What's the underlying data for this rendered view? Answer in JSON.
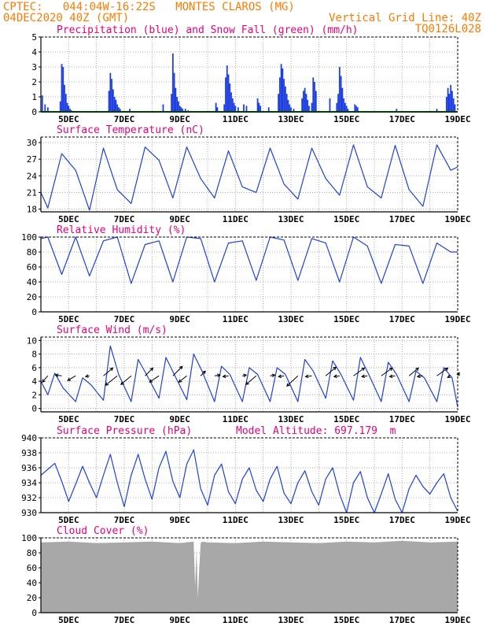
{
  "header": {
    "line1_left": "CPTEC:   044:04W-16:22S   MONTES CLAROS (MG)",
    "line2_left": "04DEC2020 40Z (GMT)",
    "line2_right": "Vertical Grid Line: 40Z",
    "line3_right": "TQ0126L028"
  },
  "colors": {
    "header": "#ff7a00",
    "panel_title": "#e8007a",
    "series": "#1f3fe0",
    "snow": "#00aa00",
    "cloud": "#a8a8a8",
    "grid": "#9a9a9a"
  },
  "chart_data": [
    {
      "type": "bar",
      "title": "Precipitation (blue) and Snow Fall (green) (mm/h)",
      "x_labels": [
        "5DEC",
        "7DEC",
        "9DEC",
        "11DEC",
        "13DEC",
        "15DEC",
        "17DEC",
        "19DEC"
      ],
      "xlim": [
        4.0,
        19.0
      ],
      "ylim": [
        0,
        5
      ],
      "yticks": [
        0,
        1,
        2,
        3,
        4,
        5
      ],
      "grid": true,
      "series": [
        {
          "name": "Precipitation",
          "x": [
            4.05,
            4.15,
            4.25,
            4.7,
            4.75,
            4.8,
            4.85,
            4.9,
            4.95,
            5.0,
            5.05,
            5.1,
            6.45,
            6.5,
            6.55,
            6.6,
            6.65,
            6.7,
            6.75,
            6.8,
            6.85,
            7.2,
            8.4,
            8.7,
            8.75,
            8.8,
            8.85,
            8.9,
            8.95,
            9.0,
            9.05,
            9.1,
            9.2,
            9.3,
            10.3,
            10.35,
            10.6,
            10.65,
            10.7,
            10.75,
            10.8,
            10.85,
            10.9,
            10.95,
            11.0,
            11.1,
            11.3,
            11.4,
            11.8,
            11.85,
            11.9,
            12.2,
            12.55,
            12.6,
            12.65,
            12.7,
            12.75,
            12.8,
            12.85,
            12.9,
            12.95,
            13.0,
            13.1,
            13.4,
            13.45,
            13.5,
            13.55,
            13.6,
            13.65,
            13.75,
            13.8,
            13.85,
            13.9,
            14.4,
            14.65,
            14.7,
            14.75,
            14.8,
            14.85,
            14.9,
            14.95,
            15.0,
            15.05,
            15.3,
            15.35,
            15.4,
            16.8,
            18.25,
            18.6,
            18.65,
            18.7,
            18.75,
            18.8,
            18.85,
            18.9
          ],
          "values": [
            1.1,
            0.5,
            0.3,
            0.7,
            3.2,
            3.0,
            1.8,
            1.2,
            0.6,
            0.4,
            0.2,
            0.1,
            1.4,
            2.6,
            2.2,
            1.5,
            1.0,
            0.8,
            0.5,
            0.3,
            0.2,
            0.2,
            0.5,
            1.2,
            3.9,
            2.6,
            1.6,
            1.0,
            0.7,
            0.4,
            0.3,
            0.2,
            0.2,
            0.1,
            0.6,
            0.3,
            0.5,
            2.3,
            3.1,
            2.5,
            1.9,
            1.3,
            0.9,
            0.6,
            0.4,
            0.3,
            0.5,
            0.4,
            0.9,
            0.6,
            0.4,
            0.3,
            1.2,
            2.3,
            3.2,
            2.9,
            2.2,
            1.7,
            1.2,
            0.8,
            0.5,
            0.3,
            0.2,
            0.9,
            1.4,
            1.6,
            1.2,
            0.8,
            0.4,
            0.6,
            2.3,
            2.0,
            1.4,
            0.9,
            0.6,
            1.2,
            3.0,
            2.4,
            1.6,
            0.9,
            0.6,
            0.4,
            0.2,
            0.5,
            0.4,
            0.3,
            0.2,
            0.2,
            1.0,
            1.6,
            1.2,
            1.8,
            1.4,
            0.9,
            0.5
          ]
        },
        {
          "name": "Snow Fall",
          "x": [
            4.0,
            19.0
          ],
          "values": [
            0,
            0
          ]
        }
      ]
    },
    {
      "type": "line",
      "title": "Surface Temperature (nC)",
      "x_labels": [
        "5DEC",
        "7DEC",
        "9DEC",
        "11DEC",
        "13DEC",
        "15DEC",
        "17DEC",
        "19DEC"
      ],
      "xlim": [
        4.0,
        19.0
      ],
      "ylim": [
        17.5,
        31
      ],
      "yticks": [
        18,
        21,
        24,
        27,
        30
      ],
      "grid": true,
      "x": [
        4.0,
        4.25,
        4.75,
        5.25,
        5.75,
        6.25,
        6.75,
        7.25,
        7.75,
        8.25,
        8.75,
        9.25,
        9.75,
        10.25,
        10.75,
        11.25,
        11.75,
        12.25,
        12.75,
        13.25,
        13.75,
        14.25,
        14.75,
        15.25,
        15.75,
        16.25,
        16.75,
        17.25,
        17.75,
        18.25,
        18.75,
        19.0
      ],
      "values": [
        21.0,
        18.2,
        28.0,
        25.0,
        17.8,
        29.0,
        21.5,
        19.0,
        29.2,
        26.8,
        20.0,
        29.2,
        23.5,
        20.0,
        28.5,
        22.0,
        21.0,
        29.0,
        22.5,
        19.8,
        29.0,
        23.5,
        20.5,
        29.6,
        22.0,
        20.0,
        29.5,
        21.5,
        18.5,
        29.6,
        25.0,
        25.6
      ]
    },
    {
      "type": "line",
      "title": "Relative Humidity (%)",
      "x_labels": [
        "5DEC",
        "7DEC",
        "9DEC",
        "11DEC",
        "13DEC",
        "15DEC",
        "17DEC",
        "19DEC"
      ],
      "xlim": [
        4.0,
        19.0
      ],
      "ylim": [
        0,
        100
      ],
      "yticks": [
        0,
        20,
        40,
        60,
        80,
        100
      ],
      "grid": true,
      "x": [
        4.0,
        4.25,
        4.75,
        5.25,
        5.75,
        6.25,
        6.75,
        7.25,
        7.75,
        8.25,
        8.75,
        9.25,
        9.75,
        10.25,
        10.75,
        11.25,
        11.75,
        12.25,
        12.75,
        13.25,
        13.75,
        14.25,
        14.75,
        15.25,
        15.75,
        16.25,
        16.75,
        17.25,
        17.75,
        18.25,
        18.75,
        19.0
      ],
      "values": [
        98,
        100,
        50,
        100,
        48,
        95,
        100,
        38,
        90,
        95,
        40,
        100,
        98,
        40,
        92,
        95,
        42,
        100,
        96,
        42,
        98,
        92,
        40,
        100,
        88,
        38,
        90,
        88,
        38,
        92,
        80,
        80
      ]
    },
    {
      "type": "line",
      "title": "Surface Wind (m/s)",
      "x_labels": [
        "5DEC",
        "7DEC",
        "9DEC",
        "11DEC",
        "13DEC",
        "15DEC",
        "17DEC",
        "19DEC"
      ],
      "xlim": [
        4.0,
        19.0
      ],
      "ylim": [
        -0.5,
        10.5
      ],
      "yticks": [
        0,
        2,
        4,
        6,
        8,
        10
      ],
      "grid": true,
      "x": [
        4.0,
        4.25,
        4.5,
        4.8,
        5.25,
        5.5,
        5.8,
        6.25,
        6.5,
        6.8,
        7.25,
        7.5,
        7.8,
        8.25,
        8.5,
        8.8,
        9.25,
        9.5,
        9.8,
        10.25,
        10.5,
        10.8,
        11.25,
        11.5,
        11.8,
        12.25,
        12.5,
        12.8,
        13.25,
        13.5,
        13.8,
        14.25,
        14.5,
        14.8,
        15.25,
        15.5,
        15.8,
        16.25,
        16.5,
        16.8,
        17.25,
        17.5,
        17.8,
        18.25,
        18.5,
        18.8,
        19.0
      ],
      "values": [
        4.0,
        2.0,
        5.2,
        3.0,
        1.0,
        4.5,
        3.5,
        1.2,
        9.2,
        5.0,
        1.0,
        7.2,
        5.0,
        1.5,
        7.5,
        5.0,
        1.3,
        8.0,
        5.5,
        1.0,
        6.2,
        5.0,
        1.0,
        6.0,
        5.0,
        1.0,
        6.0,
        5.0,
        1.0,
        7.2,
        5.5,
        1.5,
        7.0,
        5.0,
        1.2,
        7.5,
        5.0,
        1.0,
        6.8,
        5.0,
        1.0,
        5.5,
        4.5,
        1.0,
        6.0,
        4.5,
        0.2
      ],
      "vector_times": [
        4.25,
        4.75,
        5.25,
        5.75,
        6.25,
        6.75,
        7.25,
        7.75,
        8.25,
        8.75,
        9.25,
        9.75,
        10.25,
        10.75,
        11.25,
        11.75,
        12.25,
        12.75,
        13.25,
        13.75,
        14.25,
        14.75,
        15.25,
        15.75,
        16.25,
        16.75,
        17.25,
        17.75,
        18.25,
        18.75,
        19.0
      ],
      "vector_u": [
        -1.4,
        -1.6,
        -2.0,
        -1.0,
        2.4,
        -3.0,
        -2.6,
        2.0,
        -2.4,
        2.4,
        -2.0,
        1.2,
        1.4,
        -1.4,
        1.0,
        -2.6,
        1.2,
        -1.4,
        -2.8,
        -1.6,
        2.6,
        -1.4,
        2.8,
        -1.4,
        2.8,
        -1.4,
        2.4,
        -1.4,
        2.8,
        -0.8,
        0.4
      ],
      "vector_v": [
        -1.6,
        0.2,
        -1.2,
        -0.2,
        2.0,
        -2.4,
        -2.2,
        2.0,
        -1.6,
        2.4,
        -1.6,
        1.2,
        0.2,
        -0.2,
        0.2,
        -2.2,
        0.2,
        -0.2,
        -2.6,
        -0.2,
        2.2,
        -0.2,
        2.0,
        -0.2,
        2.0,
        -0.2,
        2.0,
        -0.2,
        2.0,
        -0.4,
        0.8
      ]
    },
    {
      "type": "line",
      "title": "Surface Pressure (hPa)",
      "annotation": "Model Altitude: 697.179  m",
      "x_labels": [
        "5DEC",
        "7DEC",
        "9DEC",
        "11DEC",
        "13DEC",
        "15DEC",
        "17DEC",
        "19DEC"
      ],
      "xlim": [
        4.0,
        19.0
      ],
      "ylim": [
        930,
        940
      ],
      "yticks": [
        930,
        932,
        934,
        936,
        938,
        940
      ],
      "grid": true,
      "x": [
        4.0,
        4.5,
        4.75,
        5.0,
        5.25,
        5.5,
        5.75,
        6.0,
        6.25,
        6.5,
        6.75,
        7.0,
        7.25,
        7.5,
        7.75,
        8.0,
        8.25,
        8.5,
        8.75,
        9.0,
        9.25,
        9.5,
        9.75,
        10.0,
        10.25,
        10.5,
        10.75,
        11.0,
        11.25,
        11.5,
        11.75,
        12.0,
        12.25,
        12.5,
        12.75,
        13.0,
        13.25,
        13.5,
        13.75,
        14.0,
        14.25,
        14.5,
        14.75,
        15.0,
        15.25,
        15.5,
        15.75,
        16.0,
        16.25,
        16.5,
        16.75,
        17.0,
        17.25,
        17.5,
        17.75,
        18.0,
        18.25,
        18.5,
        18.75,
        19.0
      ],
      "values": [
        935.0,
        936.6,
        934.2,
        931.5,
        933.8,
        936.2,
        934.0,
        932.0,
        935.0,
        937.8,
        934.0,
        930.8,
        935.0,
        937.8,
        934.5,
        931.8,
        936.0,
        938.2,
        934.2,
        932.0,
        936.5,
        938.4,
        933.2,
        931.0,
        935.0,
        936.5,
        932.8,
        931.2,
        934.5,
        936.0,
        933.0,
        931.5,
        934.5,
        936.2,
        932.6,
        931.2,
        934.0,
        935.6,
        932.8,
        931.0,
        934.5,
        936.0,
        932.5,
        930.0,
        934.0,
        935.5,
        932.0,
        930.0,
        932.5,
        935.2,
        931.8,
        930.0,
        933.2,
        935.0,
        933.5,
        932.5,
        934.0,
        935.2,
        932.0,
        930.2
      ]
    },
    {
      "type": "area",
      "title": "Cloud Cover (%)",
      "x_labels": [
        "5DEC",
        "7DEC",
        "9DEC",
        "11DEC",
        "13DEC",
        "15DEC",
        "17DEC",
        "19DEC"
      ],
      "xlim": [
        4.0,
        19.0
      ],
      "ylim": [
        0,
        100
      ],
      "yticks": [
        0,
        20,
        40,
        60,
        80,
        100
      ],
      "grid": true,
      "x": [
        4.0,
        5.0,
        6.0,
        7.0,
        8.0,
        9.0,
        9.5,
        9.55,
        9.6,
        9.65,
        9.7,
        9.75,
        9.8,
        10.0,
        11.0,
        12.0,
        13.0,
        14.0,
        15.0,
        16.0,
        17.0,
        18.0,
        19.0
      ],
      "values": [
        94,
        95,
        93,
        94,
        95,
        93,
        95,
        35,
        85,
        20,
        60,
        93,
        95,
        94,
        93,
        95,
        94,
        93,
        95,
        94,
        96,
        94,
        95
      ]
    }
  ]
}
